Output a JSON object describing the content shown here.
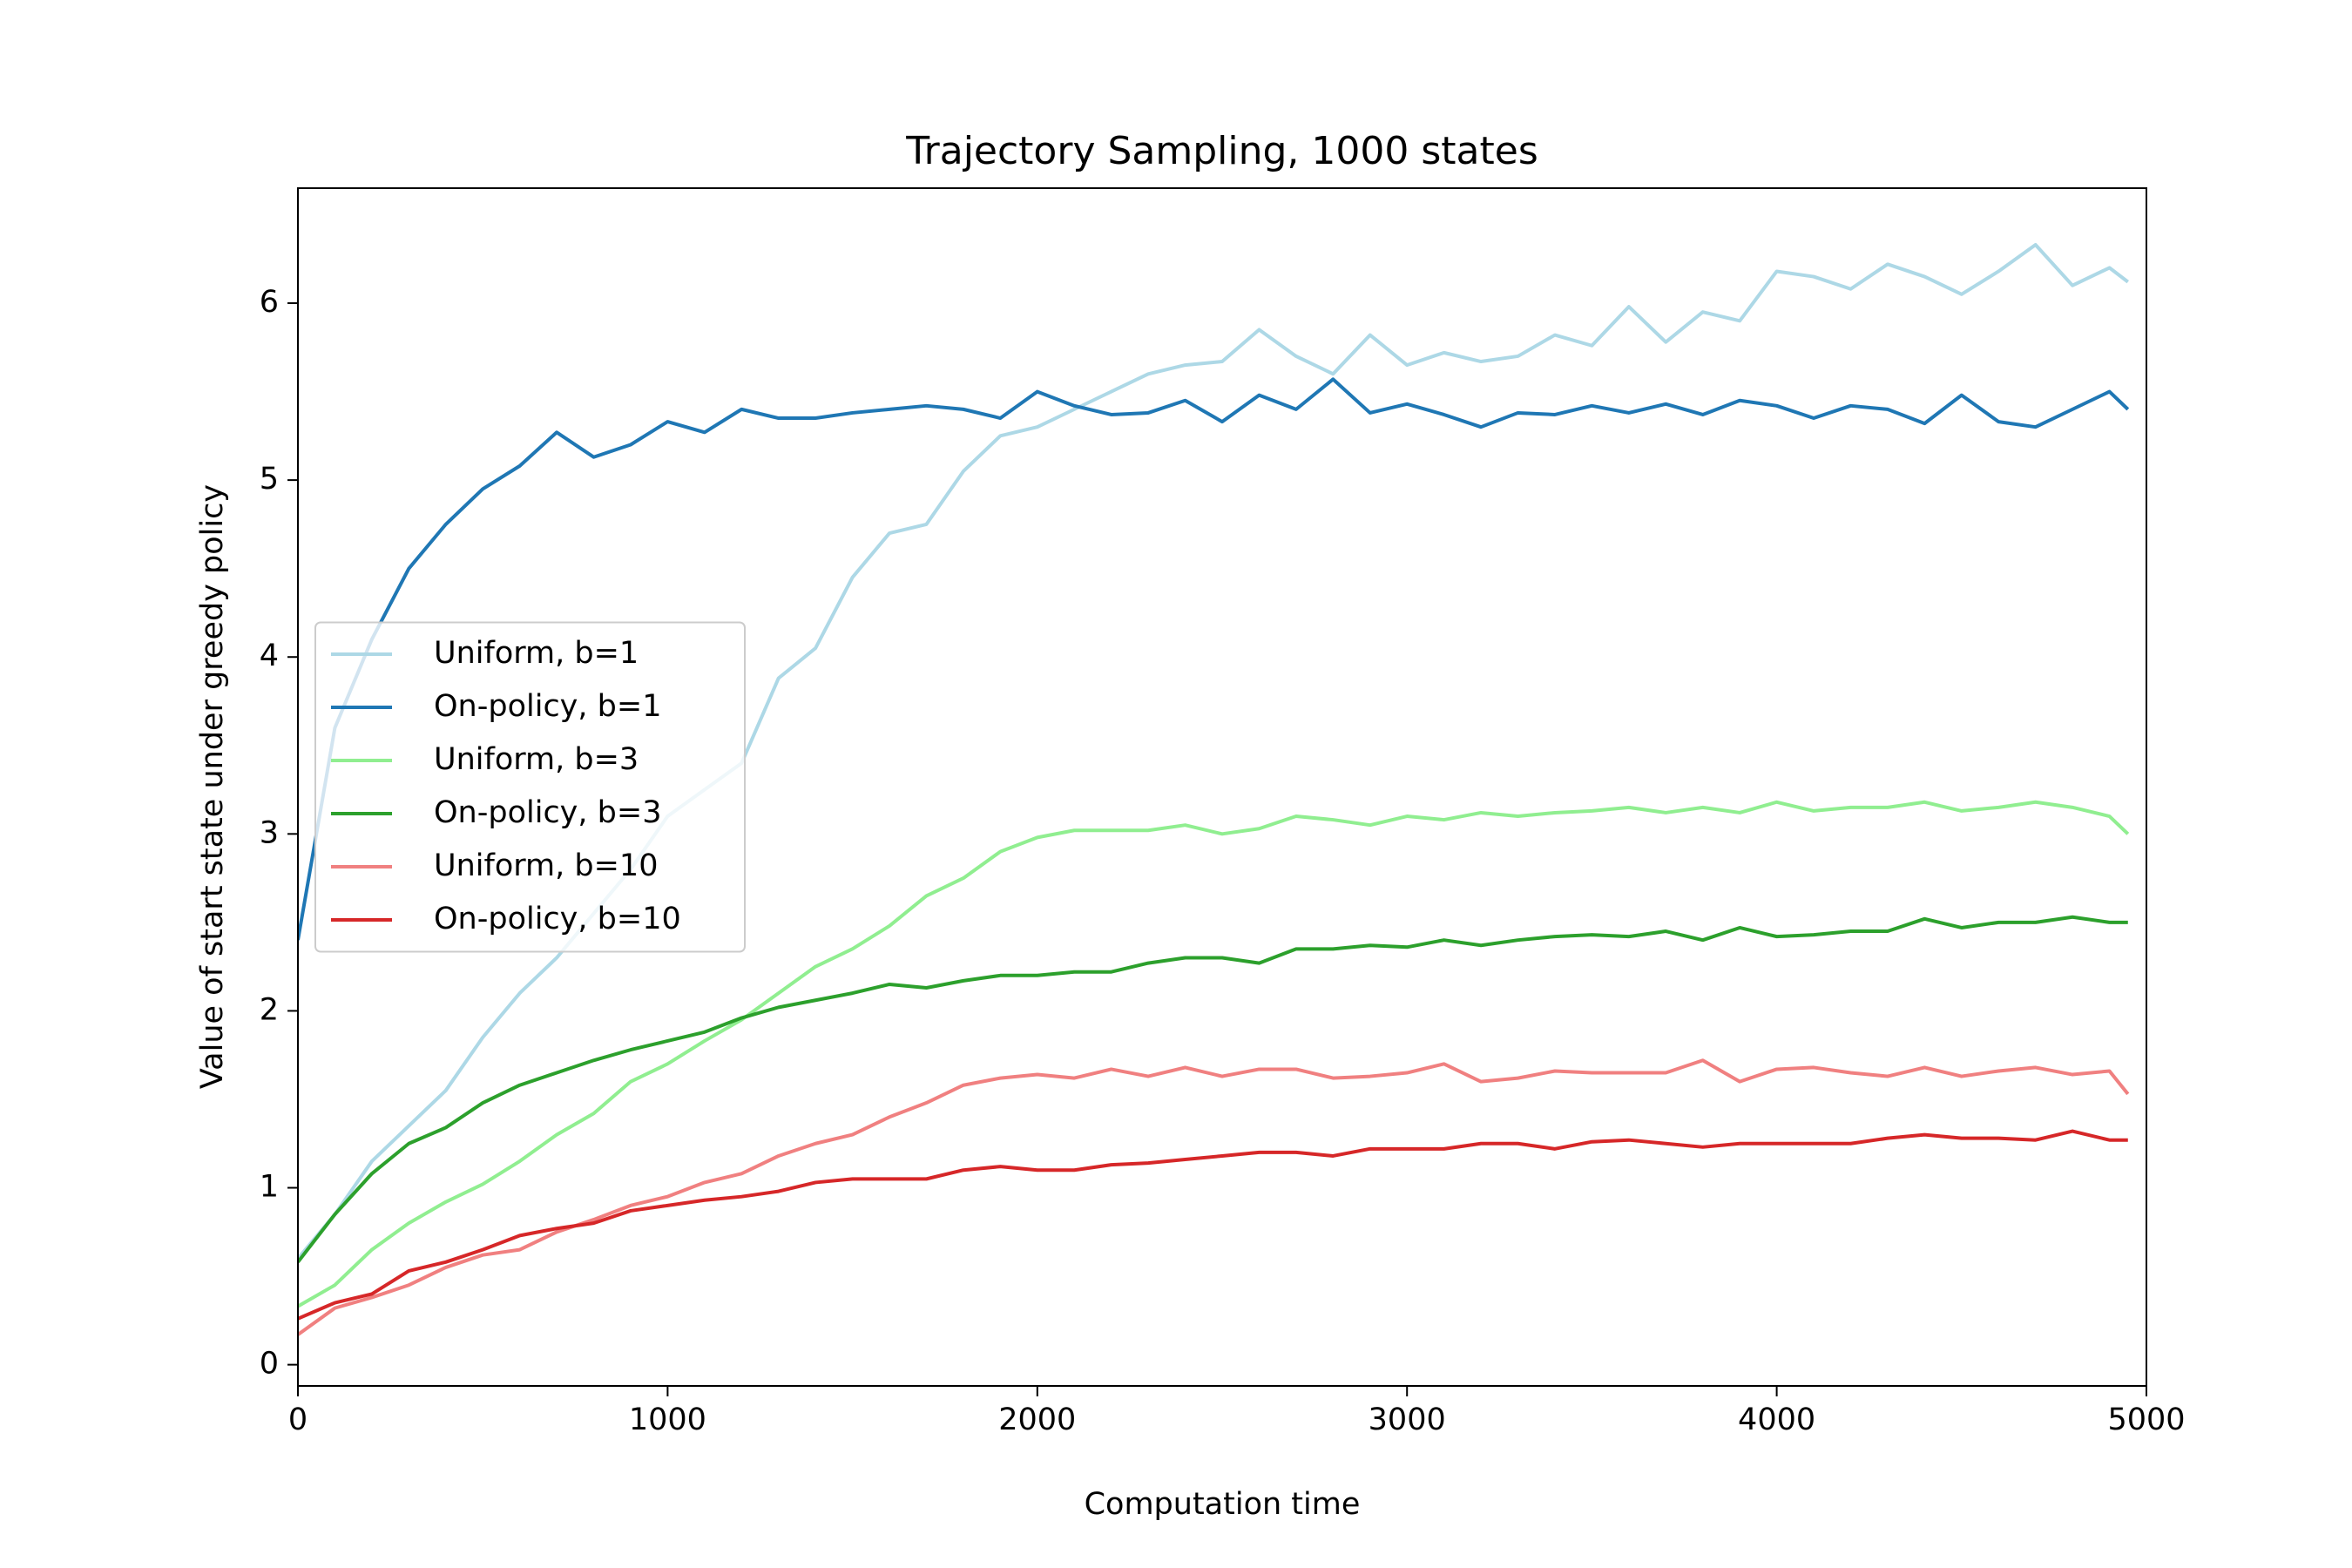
{
  "chart_data": {
    "type": "line",
    "title": "Trajectory Sampling, 1000 states",
    "x_label": "Computation time",
    "y_label": "Value of start state under greedy policy",
    "x": [
      0,
      100,
      200,
      300,
      400,
      500,
      600,
      700,
      800,
      900,
      1000,
      1100,
      1200,
      1300,
      1400,
      1500,
      1600,
      1700,
      1800,
      1900,
      2000,
      2100,
      2200,
      2300,
      2400,
      2500,
      2600,
      2700,
      2800,
      2900,
      3000,
      3100,
      3200,
      3300,
      3400,
      3500,
      3600,
      3700,
      3800,
      3900,
      4000,
      4100,
      4200,
      4300,
      4400,
      4500,
      4600,
      4700,
      4800,
      4900,
      4950
    ],
    "series": [
      {
        "name": "Uniform, b=1",
        "color": "#add8e6",
        "values": [
          0.6,
          0.85,
          1.15,
          1.35,
          1.55,
          1.85,
          2.1,
          2.3,
          2.55,
          2.8,
          3.1,
          3.25,
          3.4,
          3.88,
          4.05,
          4.45,
          4.7,
          4.75,
          5.05,
          5.25,
          5.3,
          5.4,
          5.5,
          5.6,
          5.65,
          5.67,
          5.85,
          5.7,
          5.6,
          5.82,
          5.65,
          5.72,
          5.67,
          5.7,
          5.82,
          5.76,
          5.98,
          5.78,
          5.95,
          5.9,
          6.18,
          6.15,
          6.08,
          6.22,
          6.15,
          6.05,
          6.18,
          6.33,
          6.1,
          6.2,
          6.12
        ]
      },
      {
        "name": "On-policy, b=1",
        "color": "#1f77b4",
        "values": [
          2.4,
          3.6,
          4.1,
          4.5,
          4.75,
          4.95,
          5.08,
          5.27,
          5.13,
          5.2,
          5.33,
          5.27,
          5.4,
          5.35,
          5.35,
          5.38,
          5.4,
          5.42,
          5.4,
          5.35,
          5.5,
          5.42,
          5.37,
          5.38,
          5.45,
          5.33,
          5.48,
          5.4,
          5.57,
          5.38,
          5.43,
          5.37,
          5.3,
          5.38,
          5.37,
          5.42,
          5.38,
          5.43,
          5.37,
          5.45,
          5.42,
          5.35,
          5.42,
          5.4,
          5.32,
          5.48,
          5.33,
          5.3,
          5.4,
          5.5,
          5.4
        ]
      },
      {
        "name": "Uniform, b=3",
        "color": "#90ee90",
        "values": [
          0.33,
          0.45,
          0.65,
          0.8,
          0.92,
          1.02,
          1.15,
          1.3,
          1.42,
          1.6,
          1.7,
          1.83,
          1.95,
          2.1,
          2.25,
          2.35,
          2.48,
          2.65,
          2.75,
          2.9,
          2.98,
          3.02,
          3.02,
          3.02,
          3.05,
          3.0,
          3.03,
          3.1,
          3.08,
          3.05,
          3.1,
          3.08,
          3.12,
          3.1,
          3.12,
          3.13,
          3.15,
          3.12,
          3.15,
          3.12,
          3.18,
          3.13,
          3.15,
          3.15,
          3.18,
          3.13,
          3.15,
          3.18,
          3.15,
          3.1,
          3.0
        ]
      },
      {
        "name": "On-policy, b=3",
        "color": "#2ca02c",
        "values": [
          0.58,
          0.85,
          1.08,
          1.25,
          1.34,
          1.48,
          1.58,
          1.65,
          1.72,
          1.78,
          1.83,
          1.88,
          1.96,
          2.02,
          2.06,
          2.1,
          2.15,
          2.13,
          2.17,
          2.2,
          2.2,
          2.22,
          2.22,
          2.27,
          2.3,
          2.3,
          2.27,
          2.35,
          2.35,
          2.37,
          2.36,
          2.4,
          2.37,
          2.4,
          2.42,
          2.43,
          2.42,
          2.45,
          2.4,
          2.47,
          2.42,
          2.43,
          2.45,
          2.45,
          2.52,
          2.47,
          2.5,
          2.5,
          2.53,
          2.5,
          2.5
        ]
      },
      {
        "name": "Uniform, b=10",
        "color": "#f08080",
        "values": [
          0.17,
          0.32,
          0.38,
          0.45,
          0.55,
          0.62,
          0.65,
          0.75,
          0.82,
          0.9,
          0.95,
          1.03,
          1.08,
          1.18,
          1.25,
          1.3,
          1.4,
          1.48,
          1.58,
          1.62,
          1.64,
          1.62,
          1.67,
          1.63,
          1.68,
          1.63,
          1.67,
          1.67,
          1.62,
          1.63,
          1.65,
          1.7,
          1.6,
          1.62,
          1.66,
          1.65,
          1.65,
          1.65,
          1.72,
          1.6,
          1.67,
          1.68,
          1.65,
          1.63,
          1.68,
          1.63,
          1.66,
          1.68,
          1.64,
          1.66,
          1.53
        ]
      },
      {
        "name": "On-policy, b=10",
        "color": "#d62728",
        "values": [
          0.26,
          0.35,
          0.4,
          0.53,
          0.58,
          0.65,
          0.73,
          0.77,
          0.8,
          0.87,
          0.9,
          0.93,
          0.95,
          0.98,
          1.03,
          1.05,
          1.05,
          1.05,
          1.1,
          1.12,
          1.1,
          1.1,
          1.13,
          1.14,
          1.16,
          1.18,
          1.2,
          1.2,
          1.18,
          1.22,
          1.22,
          1.22,
          1.25,
          1.25,
          1.22,
          1.26,
          1.27,
          1.25,
          1.23,
          1.25,
          1.25,
          1.25,
          1.25,
          1.28,
          1.3,
          1.28,
          1.28,
          1.27,
          1.32,
          1.27,
          1.27
        ]
      }
    ],
    "xlim": [
      0,
      5000
    ],
    "xticks": [
      0,
      1000,
      2000,
      3000,
      4000,
      5000
    ],
    "ylim": [
      -0.12,
      6.65
    ],
    "yticks": [
      0,
      1,
      2,
      3,
      4,
      5,
      6
    ],
    "legend": "center left"
  }
}
